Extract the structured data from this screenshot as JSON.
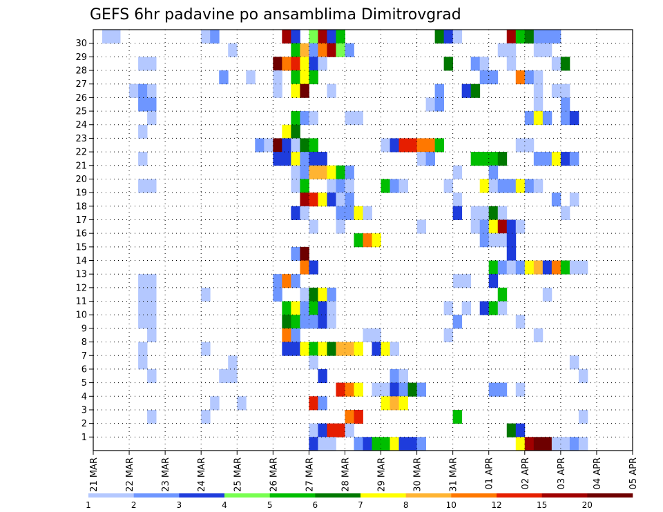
{
  "chart_data": {
    "type": "heatmap",
    "title": "GEFS 6hr padavine po ansamblima Dimitrovgrad",
    "xlabel": "",
    "ylabel": "",
    "x_tick_labels": [
      "21 MAR",
      "22 MAR",
      "23 MAR",
      "24 MAR",
      "25 MAR",
      "26 MAR",
      "27 MAR",
      "28 MAR",
      "29 MAR",
      "30 MAR",
      "31 MAR",
      "01 APR",
      "02 APR",
      "03 APR",
      "04 APR",
      "05 APR"
    ],
    "y_tick_labels": [
      "1",
      "2",
      "3",
      "4",
      "5",
      "6",
      "7",
      "8",
      "9",
      "10",
      "11",
      "12",
      "13",
      "14",
      "15",
      "16",
      "17",
      "18",
      "19",
      "20",
      "21",
      "22",
      "23",
      "24",
      "25",
      "26",
      "27",
      "28",
      "29",
      "30"
    ],
    "x_steps_per_day": 4,
    "x_range_steps": [
      0,
      60
    ],
    "y_range_rows": [
      0,
      30
    ],
    "colorbar": {
      "labels": [
        "1",
        "2",
        "3",
        "4",
        "5",
        "6",
        "7",
        "8",
        "10",
        "12",
        "15",
        "20"
      ],
      "colors": [
        "#b4c8ff",
        "#6e96ff",
        "#1e3cdc",
        "#78ff50",
        "#00be00",
        "#007800",
        "#ffff00",
        "#ffb432",
        "#ff7800",
        "#e61e00",
        "#a00000",
        "#6e0000"
      ]
    },
    "level_scale_note": "cell value = colour level index 0..11 matching colorbar.colors",
    "cells": [
      [
        1,
        30,
        0
      ],
      [
        2,
        30,
        0
      ],
      [
        12,
        30,
        0
      ],
      [
        13,
        30,
        1
      ],
      [
        21,
        30,
        10
      ],
      [
        22,
        30,
        2
      ],
      [
        24,
        30,
        3
      ],
      [
        25,
        30,
        10
      ],
      [
        26,
        30,
        2
      ],
      [
        27,
        30,
        4
      ],
      [
        38,
        30,
        5
      ],
      [
        39,
        30,
        2
      ],
      [
        40,
        30,
        0
      ],
      [
        46,
        30,
        10
      ],
      [
        47,
        30,
        4
      ],
      [
        48,
        30,
        5
      ],
      [
        49,
        30,
        1
      ],
      [
        50,
        30,
        1
      ],
      [
        51,
        30,
        1
      ],
      [
        15,
        29,
        0
      ],
      [
        22,
        29,
        4
      ],
      [
        23,
        29,
        7
      ],
      [
        24,
        29,
        1
      ],
      [
        25,
        29,
        8
      ],
      [
        26,
        29,
        10
      ],
      [
        27,
        29,
        3
      ],
      [
        28,
        29,
        1
      ],
      [
        45,
        29,
        0
      ],
      [
        46,
        29,
        0
      ],
      [
        49,
        29,
        0
      ],
      [
        50,
        29,
        0
      ],
      [
        5,
        28,
        0
      ],
      [
        6,
        28,
        0
      ],
      [
        20,
        28,
        11
      ],
      [
        21,
        28,
        8
      ],
      [
        22,
        28,
        9
      ],
      [
        23,
        28,
        6
      ],
      [
        24,
        28,
        2
      ],
      [
        25,
        28,
        0
      ],
      [
        39,
        28,
        5
      ],
      [
        42,
        28,
        1
      ],
      [
        43,
        28,
        0
      ],
      [
        46,
        28,
        0
      ],
      [
        51,
        28,
        0
      ],
      [
        52,
        28,
        5
      ],
      [
        14,
        27,
        1
      ],
      [
        17,
        27,
        0
      ],
      [
        20,
        27,
        0
      ],
      [
        22,
        27,
        4
      ],
      [
        23,
        27,
        6
      ],
      [
        24,
        27,
        4
      ],
      [
        43,
        27,
        1
      ],
      [
        44,
        27,
        1
      ],
      [
        47,
        27,
        8
      ],
      [
        48,
        27,
        1
      ],
      [
        49,
        27,
        0
      ],
      [
        4,
        26,
        0
      ],
      [
        5,
        26,
        1
      ],
      [
        6,
        26,
        0
      ],
      [
        20,
        26,
        0
      ],
      [
        22,
        26,
        6
      ],
      [
        23,
        26,
        11
      ],
      [
        26,
        26,
        0
      ],
      [
        38,
        26,
        1
      ],
      [
        41,
        26,
        2
      ],
      [
        42,
        26,
        5
      ],
      [
        49,
        26,
        0
      ],
      [
        51,
        26,
        0
      ],
      [
        52,
        26,
        0
      ],
      [
        5,
        25,
        1
      ],
      [
        6,
        25,
        1
      ],
      [
        37,
        25,
        0
      ],
      [
        38,
        25,
        1
      ],
      [
        49,
        25,
        0
      ],
      [
        52,
        25,
        1
      ],
      [
        6,
        24,
        0
      ],
      [
        22,
        24,
        4
      ],
      [
        23,
        24,
        1
      ],
      [
        24,
        24,
        0
      ],
      [
        28,
        24,
        0
      ],
      [
        29,
        24,
        0
      ],
      [
        48,
        24,
        1
      ],
      [
        49,
        24,
        6
      ],
      [
        50,
        24,
        1
      ],
      [
        52,
        24,
        1
      ],
      [
        53,
        24,
        2
      ],
      [
        5,
        23,
        0
      ],
      [
        21,
        23,
        6
      ],
      [
        22,
        23,
        5
      ],
      [
        18,
        22,
        1
      ],
      [
        19,
        22,
        0
      ],
      [
        20,
        22,
        11
      ],
      [
        21,
        22,
        2
      ],
      [
        22,
        22,
        0
      ],
      [
        23,
        22,
        5
      ],
      [
        24,
        22,
        4
      ],
      [
        32,
        22,
        0
      ],
      [
        33,
        22,
        2
      ],
      [
        34,
        22,
        9
      ],
      [
        35,
        22,
        9
      ],
      [
        36,
        22,
        8
      ],
      [
        37,
        22,
        8
      ],
      [
        38,
        22,
        4
      ],
      [
        47,
        22,
        0
      ],
      [
        48,
        22,
        0
      ],
      [
        5,
        21,
        0
      ],
      [
        20,
        21,
        2
      ],
      [
        21,
        21,
        2
      ],
      [
        22,
        21,
        6
      ],
      [
        23,
        21,
        1
      ],
      [
        24,
        21,
        2
      ],
      [
        25,
        21,
        2
      ],
      [
        36,
        21,
        0
      ],
      [
        37,
        21,
        1
      ],
      [
        42,
        21,
        4
      ],
      [
        43,
        21,
        4
      ],
      [
        44,
        21,
        4
      ],
      [
        45,
        21,
        5
      ],
      [
        49,
        21,
        1
      ],
      [
        50,
        21,
        1
      ],
      [
        51,
        21,
        6
      ],
      [
        52,
        21,
        2
      ],
      [
        53,
        21,
        1
      ],
      [
        22,
        20,
        0
      ],
      [
        23,
        20,
        1
      ],
      [
        24,
        20,
        7
      ],
      [
        25,
        20,
        7
      ],
      [
        26,
        20,
        6
      ],
      [
        27,
        20,
        4
      ],
      [
        28,
        20,
        1
      ],
      [
        40,
        20,
        0
      ],
      [
        44,
        20,
        1
      ],
      [
        5,
        19,
        0
      ],
      [
        6,
        19,
        0
      ],
      [
        22,
        19,
        0
      ],
      [
        23,
        19,
        4
      ],
      [
        26,
        19,
        0
      ],
      [
        27,
        19,
        1
      ],
      [
        28,
        19,
        0
      ],
      [
        32,
        19,
        4
      ],
      [
        33,
        19,
        1
      ],
      [
        34,
        19,
        0
      ],
      [
        39,
        19,
        0
      ],
      [
        43,
        19,
        6
      ],
      [
        44,
        19,
        0
      ],
      [
        45,
        19,
        1
      ],
      [
        46,
        19,
        1
      ],
      [
        47,
        19,
        6
      ],
      [
        48,
        19,
        1
      ],
      [
        49,
        19,
        0
      ],
      [
        23,
        18,
        10
      ],
      [
        24,
        18,
        9
      ],
      [
        25,
        18,
        6
      ],
      [
        26,
        18,
        2
      ],
      [
        27,
        18,
        0
      ],
      [
        28,
        18,
        1
      ],
      [
        40,
        18,
        0
      ],
      [
        51,
        18,
        1
      ],
      [
        53,
        18,
        0
      ],
      [
        22,
        17,
        2
      ],
      [
        23,
        17,
        0
      ],
      [
        27,
        17,
        1
      ],
      [
        28,
        17,
        1
      ],
      [
        29,
        17,
        6
      ],
      [
        30,
        17,
        0
      ],
      [
        40,
        17,
        2
      ],
      [
        42,
        17,
        0
      ],
      [
        43,
        17,
        0
      ],
      [
        44,
        17,
        5
      ],
      [
        45,
        17,
        0
      ],
      [
        52,
        17,
        0
      ],
      [
        24,
        16,
        0
      ],
      [
        27,
        16,
        0
      ],
      [
        36,
        16,
        0
      ],
      [
        42,
        16,
        0
      ],
      [
        43,
        16,
        1
      ],
      [
        44,
        16,
        6
      ],
      [
        45,
        16,
        10
      ],
      [
        46,
        16,
        2
      ],
      [
        47,
        16,
        0
      ],
      [
        29,
        15,
        4
      ],
      [
        30,
        15,
        8
      ],
      [
        31,
        15,
        6
      ],
      [
        43,
        15,
        1
      ],
      [
        44,
        15,
        0
      ],
      [
        45,
        15,
        0
      ],
      [
        46,
        15,
        2
      ],
      [
        22,
        14,
        1
      ],
      [
        23,
        14,
        11
      ],
      [
        46,
        14,
        2
      ],
      [
        23,
        13,
        8
      ],
      [
        24,
        13,
        2
      ],
      [
        44,
        13,
        4
      ],
      [
        45,
        13,
        1
      ],
      [
        46,
        13,
        0
      ],
      [
        47,
        13,
        1
      ],
      [
        48,
        13,
        6
      ],
      [
        49,
        13,
        7
      ],
      [
        50,
        13,
        2
      ],
      [
        51,
        13,
        8
      ],
      [
        52,
        13,
        4
      ],
      [
        53,
        13,
        0
      ],
      [
        54,
        13,
        0
      ],
      [
        5,
        12,
        0
      ],
      [
        6,
        12,
        0
      ],
      [
        20,
        12,
        1
      ],
      [
        21,
        12,
        8
      ],
      [
        22,
        12,
        1
      ],
      [
        40,
        12,
        0
      ],
      [
        41,
        12,
        0
      ],
      [
        44,
        12,
        2
      ],
      [
        5,
        11,
        0
      ],
      [
        6,
        11,
        0
      ],
      [
        12,
        11,
        0
      ],
      [
        20,
        11,
        1
      ],
      [
        23,
        11,
        0
      ],
      [
        24,
        11,
        5
      ],
      [
        25,
        11,
        6
      ],
      [
        26,
        11,
        1
      ],
      [
        45,
        11,
        4
      ],
      [
        50,
        11,
        0
      ],
      [
        5,
        10,
        0
      ],
      [
        6,
        10,
        0
      ],
      [
        21,
        10,
        4
      ],
      [
        22,
        10,
        6
      ],
      [
        23,
        10,
        1
      ],
      [
        24,
        10,
        4
      ],
      [
        25,
        10,
        2
      ],
      [
        26,
        10,
        0
      ],
      [
        39,
        10,
        0
      ],
      [
        41,
        10,
        0
      ],
      [
        43,
        10,
        2
      ],
      [
        44,
        10,
        4
      ],
      [
        45,
        10,
        0
      ],
      [
        5,
        9,
        0
      ],
      [
        6,
        9,
        0
      ],
      [
        21,
        9,
        5
      ],
      [
        22,
        9,
        4
      ],
      [
        23,
        9,
        1
      ],
      [
        24,
        9,
        1
      ],
      [
        25,
        9,
        2
      ],
      [
        26,
        9,
        0
      ],
      [
        40,
        9,
        1
      ],
      [
        47,
        9,
        0
      ],
      [
        6,
        8,
        0
      ],
      [
        21,
        8,
        8
      ],
      [
        22,
        8,
        1
      ],
      [
        30,
        8,
        0
      ],
      [
        31,
        8,
        0
      ],
      [
        39,
        8,
        0
      ],
      [
        49,
        8,
        0
      ],
      [
        5,
        7,
        0
      ],
      [
        12,
        7,
        0
      ],
      [
        21,
        7,
        2
      ],
      [
        22,
        7,
        2
      ],
      [
        23,
        7,
        6
      ],
      [
        24,
        7,
        4
      ],
      [
        25,
        7,
        6
      ],
      [
        26,
        7,
        5
      ],
      [
        27,
        7,
        7
      ],
      [
        28,
        7,
        7
      ],
      [
        29,
        7,
        6
      ],
      [
        31,
        7,
        2
      ],
      [
        32,
        7,
        6
      ],
      [
        33,
        7,
        0
      ],
      [
        5,
        6,
        0
      ],
      [
        15,
        6,
        0
      ],
      [
        24,
        6,
        0
      ],
      [
        53,
        6,
        0
      ],
      [
        6,
        5,
        0
      ],
      [
        14,
        5,
        0
      ],
      [
        15,
        5,
        0
      ],
      [
        25,
        5,
        2
      ],
      [
        33,
        5,
        1
      ],
      [
        34,
        5,
        0
      ],
      [
        54,
        5,
        0
      ],
      [
        27,
        4,
        9
      ],
      [
        28,
        4,
        8
      ],
      [
        29,
        4,
        6
      ],
      [
        31,
        4,
        0
      ],
      [
        32,
        4,
        0
      ],
      [
        33,
        4,
        2
      ],
      [
        34,
        4,
        1
      ],
      [
        35,
        4,
        5
      ],
      [
        36,
        4,
        1
      ],
      [
        44,
        4,
        1
      ],
      [
        45,
        4,
        1
      ],
      [
        47,
        4,
        0
      ],
      [
        13,
        3,
        0
      ],
      [
        16,
        3,
        0
      ],
      [
        24,
        3,
        9
      ],
      [
        25,
        3,
        1
      ],
      [
        32,
        3,
        6
      ],
      [
        33,
        3,
        7
      ],
      [
        34,
        3,
        6
      ],
      [
        6,
        2,
        0
      ],
      [
        12,
        2,
        0
      ],
      [
        28,
        2,
        8
      ],
      [
        29,
        2,
        9
      ],
      [
        40,
        2,
        4
      ],
      [
        54,
        2,
        0
      ],
      [
        24,
        1,
        0
      ],
      [
        25,
        1,
        2
      ],
      [
        26,
        1,
        9
      ],
      [
        27,
        1,
        9
      ],
      [
        28,
        1,
        0
      ],
      [
        46,
        1,
        5
      ],
      [
        47,
        1,
        2
      ],
      [
        24,
        0,
        2
      ],
      [
        25,
        0,
        0
      ],
      [
        26,
        0,
        0
      ],
      [
        29,
        0,
        1
      ],
      [
        30,
        0,
        2
      ],
      [
        31,
        0,
        4
      ],
      [
        32,
        0,
        4
      ],
      [
        33,
        0,
        6
      ],
      [
        34,
        0,
        2
      ],
      [
        35,
        0,
        2
      ],
      [
        36,
        0,
        1
      ],
      [
        47,
        0,
        6
      ],
      [
        48,
        0,
        10
      ],
      [
        49,
        0,
        11
      ],
      [
        50,
        0,
        11
      ],
      [
        51,
        0,
        0
      ],
      [
        52,
        0,
        0
      ],
      [
        53,
        0,
        1
      ],
      [
        54,
        0,
        0
      ]
    ]
  }
}
